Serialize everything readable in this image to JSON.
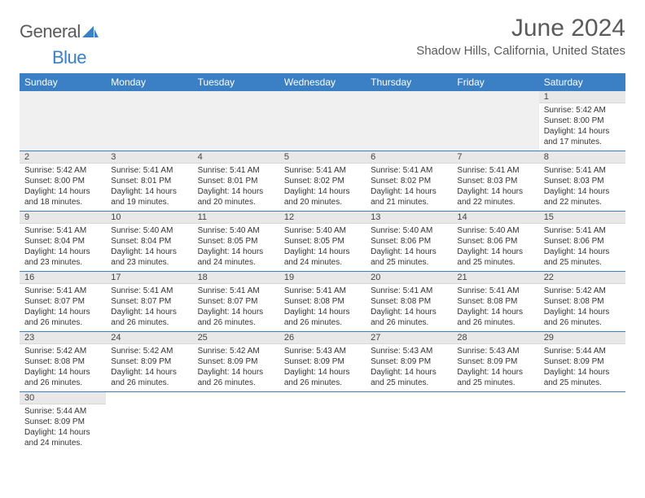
{
  "logo": {
    "word1": "General",
    "word2": "Blue"
  },
  "title": "June 2024",
  "location": "Shadow Hills, California, United States",
  "colors": {
    "header_bg": "#3b7fc4",
    "header_text": "#ffffff",
    "daynum_bg": "#e8e8e8",
    "row_divider": "#3b7fc4",
    "page_bg": "#ffffff",
    "text": "#333333",
    "title_text": "#5a5a5a"
  },
  "typography": {
    "title_fontsize": 30,
    "location_fontsize": 15,
    "header_fontsize": 12,
    "cell_fontsize": 10
  },
  "day_headers": [
    "Sunday",
    "Monday",
    "Tuesday",
    "Wednesday",
    "Thursday",
    "Friday",
    "Saturday"
  ],
  "weeks": [
    [
      null,
      null,
      null,
      null,
      null,
      null,
      {
        "n": "1",
        "sunrise": "Sunrise: 5:42 AM",
        "sunset": "Sunset: 8:00 PM",
        "day1": "Daylight: 14 hours",
        "day2": "and 17 minutes."
      }
    ],
    [
      {
        "n": "2",
        "sunrise": "Sunrise: 5:42 AM",
        "sunset": "Sunset: 8:00 PM",
        "day1": "Daylight: 14 hours",
        "day2": "and 18 minutes."
      },
      {
        "n": "3",
        "sunrise": "Sunrise: 5:41 AM",
        "sunset": "Sunset: 8:01 PM",
        "day1": "Daylight: 14 hours",
        "day2": "and 19 minutes."
      },
      {
        "n": "4",
        "sunrise": "Sunrise: 5:41 AM",
        "sunset": "Sunset: 8:01 PM",
        "day1": "Daylight: 14 hours",
        "day2": "and 20 minutes."
      },
      {
        "n": "5",
        "sunrise": "Sunrise: 5:41 AM",
        "sunset": "Sunset: 8:02 PM",
        "day1": "Daylight: 14 hours",
        "day2": "and 20 minutes."
      },
      {
        "n": "6",
        "sunrise": "Sunrise: 5:41 AM",
        "sunset": "Sunset: 8:02 PM",
        "day1": "Daylight: 14 hours",
        "day2": "and 21 minutes."
      },
      {
        "n": "7",
        "sunrise": "Sunrise: 5:41 AM",
        "sunset": "Sunset: 8:03 PM",
        "day1": "Daylight: 14 hours",
        "day2": "and 22 minutes."
      },
      {
        "n": "8",
        "sunrise": "Sunrise: 5:41 AM",
        "sunset": "Sunset: 8:03 PM",
        "day1": "Daylight: 14 hours",
        "day2": "and 22 minutes."
      }
    ],
    [
      {
        "n": "9",
        "sunrise": "Sunrise: 5:41 AM",
        "sunset": "Sunset: 8:04 PM",
        "day1": "Daylight: 14 hours",
        "day2": "and 23 minutes."
      },
      {
        "n": "10",
        "sunrise": "Sunrise: 5:40 AM",
        "sunset": "Sunset: 8:04 PM",
        "day1": "Daylight: 14 hours",
        "day2": "and 23 minutes."
      },
      {
        "n": "11",
        "sunrise": "Sunrise: 5:40 AM",
        "sunset": "Sunset: 8:05 PM",
        "day1": "Daylight: 14 hours",
        "day2": "and 24 minutes."
      },
      {
        "n": "12",
        "sunrise": "Sunrise: 5:40 AM",
        "sunset": "Sunset: 8:05 PM",
        "day1": "Daylight: 14 hours",
        "day2": "and 24 minutes."
      },
      {
        "n": "13",
        "sunrise": "Sunrise: 5:40 AM",
        "sunset": "Sunset: 8:06 PM",
        "day1": "Daylight: 14 hours",
        "day2": "and 25 minutes."
      },
      {
        "n": "14",
        "sunrise": "Sunrise: 5:40 AM",
        "sunset": "Sunset: 8:06 PM",
        "day1": "Daylight: 14 hours",
        "day2": "and 25 minutes."
      },
      {
        "n": "15",
        "sunrise": "Sunrise: 5:41 AM",
        "sunset": "Sunset: 8:06 PM",
        "day1": "Daylight: 14 hours",
        "day2": "and 25 minutes."
      }
    ],
    [
      {
        "n": "16",
        "sunrise": "Sunrise: 5:41 AM",
        "sunset": "Sunset: 8:07 PM",
        "day1": "Daylight: 14 hours",
        "day2": "and 26 minutes."
      },
      {
        "n": "17",
        "sunrise": "Sunrise: 5:41 AM",
        "sunset": "Sunset: 8:07 PM",
        "day1": "Daylight: 14 hours",
        "day2": "and 26 minutes."
      },
      {
        "n": "18",
        "sunrise": "Sunrise: 5:41 AM",
        "sunset": "Sunset: 8:07 PM",
        "day1": "Daylight: 14 hours",
        "day2": "and 26 minutes."
      },
      {
        "n": "19",
        "sunrise": "Sunrise: 5:41 AM",
        "sunset": "Sunset: 8:08 PM",
        "day1": "Daylight: 14 hours",
        "day2": "and 26 minutes."
      },
      {
        "n": "20",
        "sunrise": "Sunrise: 5:41 AM",
        "sunset": "Sunset: 8:08 PM",
        "day1": "Daylight: 14 hours",
        "day2": "and 26 minutes."
      },
      {
        "n": "21",
        "sunrise": "Sunrise: 5:41 AM",
        "sunset": "Sunset: 8:08 PM",
        "day1": "Daylight: 14 hours",
        "day2": "and 26 minutes."
      },
      {
        "n": "22",
        "sunrise": "Sunrise: 5:42 AM",
        "sunset": "Sunset: 8:08 PM",
        "day1": "Daylight: 14 hours",
        "day2": "and 26 minutes."
      }
    ],
    [
      {
        "n": "23",
        "sunrise": "Sunrise: 5:42 AM",
        "sunset": "Sunset: 8:08 PM",
        "day1": "Daylight: 14 hours",
        "day2": "and 26 minutes."
      },
      {
        "n": "24",
        "sunrise": "Sunrise: 5:42 AM",
        "sunset": "Sunset: 8:09 PM",
        "day1": "Daylight: 14 hours",
        "day2": "and 26 minutes."
      },
      {
        "n": "25",
        "sunrise": "Sunrise: 5:42 AM",
        "sunset": "Sunset: 8:09 PM",
        "day1": "Daylight: 14 hours",
        "day2": "and 26 minutes."
      },
      {
        "n": "26",
        "sunrise": "Sunrise: 5:43 AM",
        "sunset": "Sunset: 8:09 PM",
        "day1": "Daylight: 14 hours",
        "day2": "and 26 minutes."
      },
      {
        "n": "27",
        "sunrise": "Sunrise: 5:43 AM",
        "sunset": "Sunset: 8:09 PM",
        "day1": "Daylight: 14 hours",
        "day2": "and 25 minutes."
      },
      {
        "n": "28",
        "sunrise": "Sunrise: 5:43 AM",
        "sunset": "Sunset: 8:09 PM",
        "day1": "Daylight: 14 hours",
        "day2": "and 25 minutes."
      },
      {
        "n": "29",
        "sunrise": "Sunrise: 5:44 AM",
        "sunset": "Sunset: 8:09 PM",
        "day1": "Daylight: 14 hours",
        "day2": "and 25 minutes."
      }
    ],
    [
      {
        "n": "30",
        "sunrise": "Sunrise: 5:44 AM",
        "sunset": "Sunset: 8:09 PM",
        "day1": "Daylight: 14 hours",
        "day2": "and 24 minutes."
      },
      null,
      null,
      null,
      null,
      null,
      null
    ]
  ]
}
